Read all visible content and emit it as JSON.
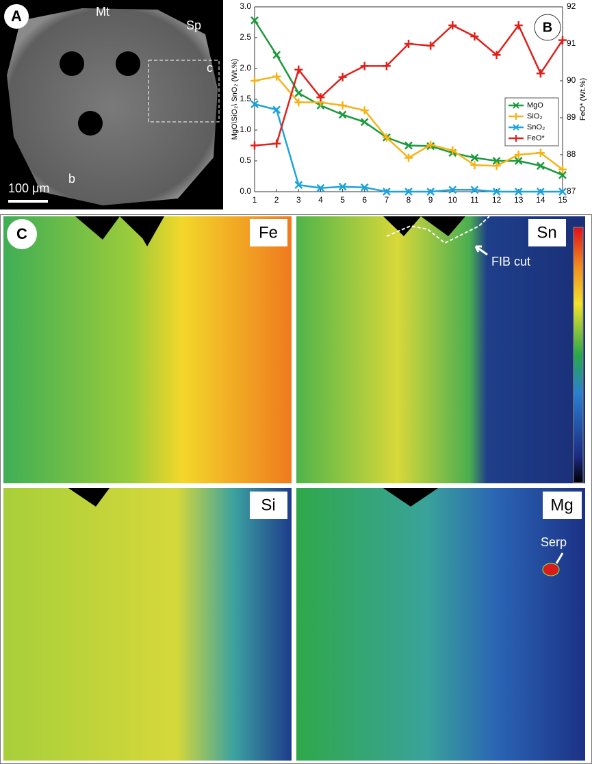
{
  "panel_a": {
    "label": "A",
    "texts": [
      "Mt",
      "Sp",
      "c",
      "b"
    ],
    "scale": "100 μm"
  },
  "chart_data": {
    "type": "line",
    "label": "B",
    "ylabel": "MgO\\SiO₂\\ SnO₂ (Wt.%)",
    "y2label": "FeO* (Wt.%)",
    "x": [
      1,
      2,
      3,
      4,
      5,
      6,
      7,
      8,
      9,
      10,
      11,
      12,
      13,
      14,
      15
    ],
    "xlim": [
      1,
      15
    ],
    "xticks": [
      1,
      2,
      3,
      4,
      5,
      6,
      7,
      8,
      9,
      10,
      11,
      12,
      13,
      14,
      15
    ],
    "ylim": [
      0,
      3
    ],
    "yticks": [
      {
        "value": 0,
        "label": "0.0"
      },
      0.5,
      {
        "value": 1,
        "label": "1.0"
      },
      1.5,
      {
        "value": 2,
        "label": "2.0"
      },
      2.5,
      {
        "value": 3,
        "label": "3.0"
      }
    ],
    "y2lim": [
      87,
      92
    ],
    "y2ticks": [
      87,
      88,
      89,
      90,
      91,
      92
    ],
    "legend": "right",
    "series": [
      {
        "name": "MgO",
        "color": "#1a9a3c",
        "marker": "x",
        "values": [
          2.78,
          2.22,
          1.6,
          1.4,
          1.25,
          1.13,
          0.88,
          0.75,
          0.74,
          0.63,
          0.55,
          0.5,
          0.5,
          0.42,
          0.27
        ]
      },
      {
        "name": "SiO₂",
        "color": "#f5b316",
        "marker": "+",
        "values": [
          1.8,
          1.87,
          1.45,
          1.45,
          1.4,
          1.32,
          0.88,
          0.55,
          0.76,
          0.67,
          0.43,
          0.42,
          0.6,
          0.63,
          0.36
        ]
      },
      {
        "name": "SnO₂",
        "color": "#1ba3dc",
        "marker": "x",
        "values": [
          1.42,
          1.33,
          0.11,
          0.06,
          0.08,
          0.07,
          0,
          0,
          0,
          0.03,
          0.03,
          0,
          0,
          0,
          0
        ]
      },
      {
        "name": "FeO*",
        "color": "#e0201b",
        "marker": "+",
        "axis": "y2",
        "values": [
          88.25,
          88.3,
          90.3,
          89.55,
          90.1,
          90.4,
          90.4,
          91.0,
          90.95,
          91.5,
          91.2,
          90.7,
          91.5,
          90.2,
          91.1
        ]
      }
    ]
  },
  "panel_c": {
    "label": "C",
    "maps": [
      "Fe",
      "Sn",
      "Si",
      "Mg"
    ],
    "annotations": [
      "FIB cut",
      "Serp"
    ]
  }
}
